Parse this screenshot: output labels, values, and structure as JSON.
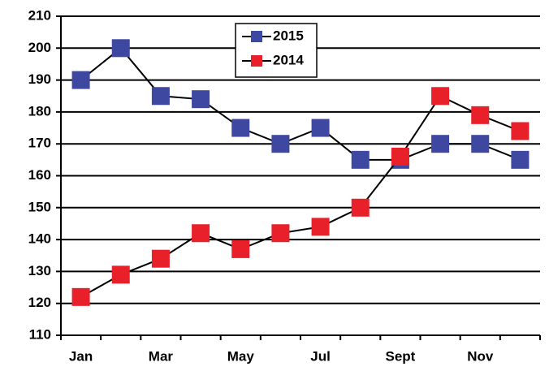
{
  "chart_data": {
    "type": "line",
    "categories": [
      "Jan",
      null,
      "Mar",
      null,
      "May",
      null,
      "Jul",
      null,
      "Sept",
      null,
      "Nov",
      null
    ],
    "series": [
      {
        "name": "2015",
        "color": "#3f48a0",
        "values": [
          190,
          200,
          185,
          184,
          175,
          170,
          175,
          165,
          165,
          170,
          170,
          165
        ]
      },
      {
        "name": "2014",
        "color": "#e8202a",
        "values": [
          122,
          129,
          134,
          142,
          137,
          142,
          144,
          150,
          166,
          185,
          179,
          174
        ]
      }
    ],
    "ylim": [
      110,
      210
    ],
    "yticks": [
      110,
      120,
      130,
      140,
      150,
      160,
      170,
      180,
      190,
      200,
      210
    ],
    "grid": true
  }
}
